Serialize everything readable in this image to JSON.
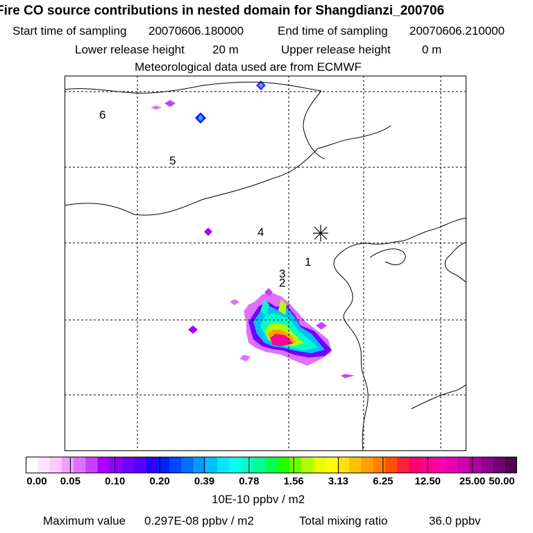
{
  "title": "Fire CO source contributions in nested domain for Shangdianzi_200706",
  "sampling": {
    "start_label": "Start time of sampling",
    "start_value": "20070606.180000",
    "end_label": "End time of sampling",
    "end_value": "20070606.210000"
  },
  "release": {
    "lower_label": "Lower release height",
    "lower_value": "20 m",
    "upper_label": "Upper release height",
    "upper_value": "0 m"
  },
  "met_data": "Meteorological data used are from ECMWF",
  "map": {
    "point_labels": [
      "1",
      "2",
      "3",
      "4",
      "5",
      "6"
    ],
    "receptor_marker": "asterisk-star"
  },
  "colorbar": {
    "ticks": [
      "0.00",
      "0.05",
      "0.10",
      "0.20",
      "0.39",
      "0.78",
      "1.56",
      "3.13",
      "6.25",
      "12.50",
      "25.00",
      "50.00"
    ],
    "colors": [
      "#ffffff",
      "#ffe4ff",
      "#ffc8ff",
      "#f0a0ff",
      "#e070ff",
      "#c840ff",
      "#a800ff",
      "#9000ff",
      "#7000ff",
      "#5800ff",
      "#3000ff",
      "#0020ff",
      "#0048ff",
      "#0070ff",
      "#0098ff",
      "#00c0ff",
      "#00e8ff",
      "#00ffee",
      "#00ffc8",
      "#00ff90",
      "#00ff50",
      "#20ff00",
      "#70ff00",
      "#b0ff00",
      "#e8ff00",
      "#ffff00",
      "#ffe000",
      "#ffc000",
      "#ffa000",
      "#ff8000",
      "#ff5000",
      "#ff2040",
      "#ff0070",
      "#ff0090",
      "#ff00a8",
      "#e800b0",
      "#d000b0",
      "#b000a0",
      "#900090",
      "#700070",
      "#500050"
    ],
    "unit": "10E-10 ppbv / m2"
  },
  "footer": {
    "max_label": "Maximum value",
    "max_value": "0.297E-08 ppbv / m2",
    "total_label": "Total mixing ratio",
    "total_value": "36.0 ppbv"
  }
}
